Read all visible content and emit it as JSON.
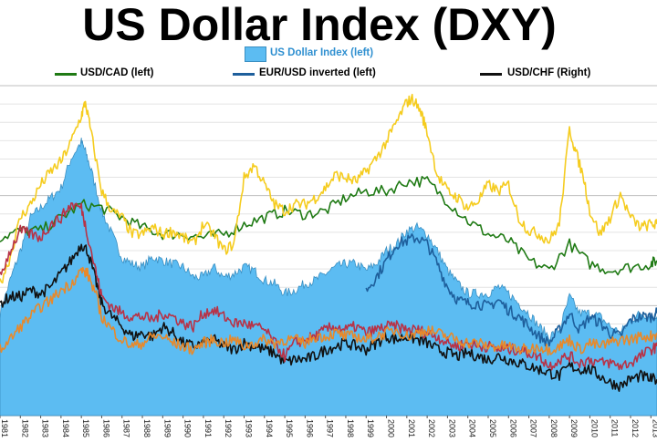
{
  "title": "US Dollar Index (DXY)",
  "legend": {
    "dxy": "US Dollar Index (left)",
    "usdcad": "USD/CAD (left)",
    "eurusd": "EUR/USD inverted (left)",
    "usdchf": "USD/CHF (Right)"
  },
  "colors": {
    "dxy": "#5cbcf2",
    "dxy_border": "#3a8fc2",
    "usdcad": "#1f7a14",
    "eurusd": "#1e5f9c",
    "usdchf": "#111111",
    "gold": "#f5cc1f",
    "orange": "#e8892a",
    "crimson": "#b83246"
  },
  "chart_data": {
    "type": "area",
    "x_ticks": [
      "1981",
      "1982",
      "1983",
      "1984",
      "1985",
      "1986",
      "1987",
      "1988",
      "1989",
      "1990",
      "1991",
      "1992",
      "1993",
      "1994",
      "1995",
      "1996",
      "1997",
      "1998",
      "1999",
      "2000",
      "2001",
      "2002",
      "2003",
      "2004",
      "2005",
      "2006",
      "2007",
      "2008",
      "2009",
      "2010",
      "2011",
      "2012",
      "2013"
    ],
    "x_range": [
      1981,
      2013.3
    ],
    "y_range": [
      0,
      1
    ],
    "grid": true,
    "series": [
      {
        "name": "US Dollar Index (left)",
        "kind": "area",
        "color": "#5cbcf2",
        "x": [
          1981.0,
          1981.5,
          1982.0,
          1982.5,
          1983.0,
          1983.5,
          1984.0,
          1984.5,
          1985.0,
          1985.2,
          1985.5,
          1986.0,
          1986.5,
          1987.0,
          1987.5,
          1988.0,
          1988.5,
          1989.0,
          1989.5,
          1990.0,
          1990.5,
          1991.0,
          1991.5,
          1992.0,
          1992.5,
          1993.0,
          1993.5,
          1994.0,
          1994.5,
          1995.0,
          1995.5,
          1996.0,
          1996.5,
          1997.0,
          1997.5,
          1998.0,
          1998.5,
          1999.0,
          1999.5,
          2000.0,
          2000.5,
          2001.0,
          2001.5,
          2002.0,
          2002.5,
          2003.0,
          2003.5,
          2004.0,
          2004.5,
          2005.0,
          2005.5,
          2006.0,
          2006.5,
          2007.0,
          2007.5,
          2008.0,
          2008.5,
          2009.0,
          2009.5,
          2010.0,
          2010.5,
          2011.0,
          2011.5,
          2012.0,
          2012.5,
          2013.0,
          2013.3
        ],
        "y": [
          0.31,
          0.41,
          0.5,
          0.6,
          0.63,
          0.66,
          0.69,
          0.78,
          0.83,
          0.8,
          0.74,
          0.62,
          0.55,
          0.48,
          0.46,
          0.45,
          0.48,
          0.47,
          0.46,
          0.45,
          0.42,
          0.42,
          0.45,
          0.42,
          0.43,
          0.45,
          0.44,
          0.41,
          0.4,
          0.37,
          0.38,
          0.4,
          0.41,
          0.43,
          0.45,
          0.46,
          0.46,
          0.44,
          0.46,
          0.5,
          0.52,
          0.56,
          0.57,
          0.55,
          0.5,
          0.44,
          0.4,
          0.37,
          0.37,
          0.37,
          0.39,
          0.37,
          0.34,
          0.31,
          0.27,
          0.24,
          0.26,
          0.36,
          0.31,
          0.31,
          0.3,
          0.27,
          0.25,
          0.29,
          0.31,
          0.3,
          0.3
        ]
      },
      {
        "name": "USD/CAD (left)",
        "kind": "line",
        "color": "#1f7a14",
        "x": [
          1981.0,
          1982.0,
          1983.0,
          1984.0,
          1985.0,
          1986.0,
          1987.0,
          1988.0,
          1989.0,
          1990.0,
          1991.0,
          1992.0,
          1993.0,
          1994.0,
          1995.0,
          1996.0,
          1997.0,
          1998.0,
          1999.0,
          2000.0,
          2001.0,
          2002.0,
          2003.0,
          2004.0,
          2005.0,
          2006.0,
          2007.0,
          2008.0,
          2009.0,
          2010.0,
          2011.0,
          2012.0,
          2013.0,
          2013.3
        ],
        "y": [
          0.54,
          0.56,
          0.56,
          0.6,
          0.64,
          0.63,
          0.6,
          0.57,
          0.55,
          0.55,
          0.54,
          0.55,
          0.58,
          0.6,
          0.62,
          0.61,
          0.62,
          0.66,
          0.68,
          0.68,
          0.71,
          0.71,
          0.65,
          0.59,
          0.55,
          0.53,
          0.47,
          0.44,
          0.52,
          0.46,
          0.44,
          0.45,
          0.46,
          0.47
        ]
      },
      {
        "name": "EUR/USD inverted (left)",
        "kind": "line",
        "color": "#1e5f9c",
        "x": [
          1999.0,
          1999.5,
          2000.0,
          2000.5,
          2001.0,
          2001.5,
          2002.0,
          2002.5,
          2003.0,
          2003.5,
          2004.0,
          2004.5,
          2005.0,
          2005.5,
          2006.0,
          2006.5,
          2007.0,
          2007.5,
          2008.0,
          2008.5,
          2009.0,
          2009.5,
          2010.0,
          2010.5,
          2011.0,
          2011.5,
          2012.0,
          2012.5,
          2013.0,
          2013.3
        ],
        "y": [
          0.38,
          0.42,
          0.47,
          0.52,
          0.53,
          0.54,
          0.52,
          0.46,
          0.39,
          0.35,
          0.34,
          0.34,
          0.33,
          0.35,
          0.32,
          0.3,
          0.27,
          0.24,
          0.22,
          0.26,
          0.31,
          0.26,
          0.3,
          0.28,
          0.25,
          0.24,
          0.29,
          0.3,
          0.3,
          0.31
        ]
      },
      {
        "name": "USD/CHF (Right)",
        "kind": "line",
        "color": "#111111",
        "x": [
          1981.0,
          1981.5,
          1982.0,
          1982.5,
          1983.0,
          1983.5,
          1984.0,
          1984.5,
          1985.0,
          1985.3,
          1985.7,
          1986.0,
          1986.5,
          1987.0,
          1987.5,
          1988.0,
          1988.5,
          1989.0,
          1989.5,
          1990.0,
          1990.5,
          1991.0,
          1991.5,
          1992.0,
          1992.5,
          1993.0,
          1993.5,
          1994.0,
          1994.5,
          1995.0,
          1995.5,
          1996.0,
          1996.5,
          1997.0,
          1997.5,
          1998.0,
          1998.5,
          1999.0,
          1999.5,
          2000.0,
          2000.5,
          2001.0,
          2001.5,
          2002.0,
          2002.5,
          2003.0,
          2003.5,
          2004.0,
          2004.5,
          2005.0,
          2005.5,
          2006.0,
          2006.5,
          2007.0,
          2007.5,
          2008.0,
          2008.5,
          2009.0,
          2009.5,
          2010.0,
          2010.5,
          2011.0,
          2011.5,
          2012.0,
          2012.5,
          2013.0,
          2013.3
        ],
        "y": [
          0.34,
          0.36,
          0.36,
          0.38,
          0.37,
          0.39,
          0.43,
          0.47,
          0.52,
          0.5,
          0.41,
          0.34,
          0.3,
          0.27,
          0.24,
          0.25,
          0.24,
          0.27,
          0.25,
          0.22,
          0.21,
          0.22,
          0.23,
          0.21,
          0.2,
          0.22,
          0.21,
          0.2,
          0.19,
          0.16,
          0.17,
          0.17,
          0.18,
          0.2,
          0.21,
          0.22,
          0.21,
          0.2,
          0.22,
          0.24,
          0.23,
          0.24,
          0.23,
          0.22,
          0.2,
          0.19,
          0.18,
          0.19,
          0.18,
          0.17,
          0.18,
          0.17,
          0.16,
          0.15,
          0.14,
          0.13,
          0.12,
          0.15,
          0.14,
          0.14,
          0.12,
          0.1,
          0.09,
          0.11,
          0.12,
          0.11,
          0.11
        ]
      },
      {
        "kind": "line",
        "color": "#f5cc1f",
        "x": [
          1981.0,
          1981.5,
          1982.0,
          1982.5,
          1983.0,
          1983.5,
          1984.0,
          1984.5,
          1985.0,
          1985.2,
          1985.5,
          1986.0,
          1986.5,
          1987.0,
          1987.5,
          1988.0,
          1988.5,
          1989.0,
          1989.5,
          1990.0,
          1990.5,
          1991.0,
          1991.5,
          1992.0,
          1992.5,
          1993.0,
          1993.5,
          1994.0,
          1994.5,
          1995.0,
          1995.5,
          1996.0,
          1996.5,
          1997.0,
          1997.5,
          1998.0,
          1998.5,
          1999.0,
          1999.5,
          2000.0,
          2000.5,
          2001.0,
          2001.3,
          2001.7,
          2002.0,
          2002.5,
          2003.0,
          2003.5,
          2004.0,
          2004.5,
          2005.0,
          2005.5,
          2006.0,
          2006.5,
          2007.0,
          2007.5,
          2008.0,
          2008.5,
          2009.0,
          2009.3,
          2009.7,
          2010.0,
          2010.5,
          2011.0,
          2011.5,
          2012.0,
          2012.5,
          2013.0,
          2013.3
        ],
        "y": [
          0.4,
          0.48,
          0.6,
          0.64,
          0.7,
          0.74,
          0.77,
          0.83,
          0.91,
          0.95,
          0.85,
          0.68,
          0.62,
          0.6,
          0.55,
          0.55,
          0.57,
          0.55,
          0.56,
          0.54,
          0.52,
          0.58,
          0.55,
          0.5,
          0.52,
          0.72,
          0.76,
          0.7,
          0.64,
          0.62,
          0.64,
          0.64,
          0.66,
          0.69,
          0.73,
          0.72,
          0.71,
          0.74,
          0.78,
          0.83,
          0.89,
          0.95,
          0.96,
          0.92,
          0.86,
          0.73,
          0.68,
          0.66,
          0.63,
          0.65,
          0.7,
          0.68,
          0.7,
          0.6,
          0.56,
          0.55,
          0.53,
          0.58,
          0.87,
          0.8,
          0.72,
          0.62,
          0.55,
          0.6,
          0.67,
          0.6,
          0.57,
          0.58,
          0.58
        ]
      },
      {
        "kind": "line",
        "color": "#b83246",
        "x": [
          1981.0,
          1981.5,
          1982.0,
          1982.5,
          1983.0,
          1983.5,
          1984.0,
          1984.5,
          1985.0,
          1985.3,
          1985.7,
          1986.0,
          1986.5,
          1987.0,
          1987.5,
          1988.0,
          1988.5,
          1989.0,
          1989.5,
          1990.0,
          1990.5,
          1991.0,
          1991.5,
          1992.0,
          1992.5,
          1993.0,
          1993.5,
          1994.0,
          1994.5,
          1995.0,
          1995.5,
          1996.0,
          1996.5,
          1997.0,
          1997.5,
          1998.0,
          1998.5,
          1999.0,
          1999.5,
          2000.0,
          2000.5,
          2001.0,
          2001.5,
          2002.0,
          2002.5,
          2003.0,
          2003.5,
          2004.0,
          2004.5,
          2005.0,
          2005.5,
          2006.0,
          2006.5,
          2007.0,
          2007.5,
          2008.0,
          2008.5,
          2009.0,
          2009.5,
          2010.0,
          2010.5,
          2011.0,
          2011.5,
          2012.0,
          2012.5,
          2013.0,
          2013.3
        ],
        "y": [
          0.42,
          0.5,
          0.56,
          0.55,
          0.54,
          0.58,
          0.6,
          0.64,
          0.63,
          0.55,
          0.44,
          0.36,
          0.33,
          0.31,
          0.3,
          0.3,
          0.29,
          0.31,
          0.3,
          0.28,
          0.27,
          0.31,
          0.32,
          0.3,
          0.28,
          0.28,
          0.27,
          0.26,
          0.22,
          0.18,
          0.22,
          0.23,
          0.24,
          0.26,
          0.27,
          0.26,
          0.27,
          0.25,
          0.26,
          0.27,
          0.27,
          0.26,
          0.26,
          0.25,
          0.24,
          0.22,
          0.21,
          0.22,
          0.21,
          0.21,
          0.2,
          0.2,
          0.2,
          0.19,
          0.18,
          0.15,
          0.17,
          0.18,
          0.16,
          0.17,
          0.16,
          0.16,
          0.15,
          0.16,
          0.18,
          0.2,
          0.21
        ]
      },
      {
        "kind": "line",
        "color": "#e8892a",
        "x": [
          1981.0,
          1981.5,
          1982.0,
          1982.5,
          1983.0,
          1983.5,
          1984.0,
          1984.5,
          1985.0,
          1985.3,
          1985.7,
          1986.0,
          1986.5,
          1987.0,
          1987.5,
          1988.0,
          1988.5,
          1989.0,
          1989.5,
          1990.0,
          1990.5,
          1991.0,
          1991.5,
          1992.0,
          1992.5,
          1993.0,
          1993.5,
          1994.0,
          1994.5,
          1995.0,
          1995.5,
          1996.0,
          1996.5,
          1997.0,
          1997.5,
          1998.0,
          1998.5,
          1999.0,
          1999.5,
          2000.0,
          2000.5,
          2001.0,
          2001.5,
          2002.0,
          2002.5,
          2003.0,
          2003.5,
          2004.0,
          2004.5,
          2005.0,
          2005.5,
          2006.0,
          2006.5,
          2007.0,
          2007.5,
          2008.0,
          2008.5,
          2009.0,
          2009.5,
          2010.0,
          2010.5,
          2011.0,
          2011.5,
          2012.0,
          2012.5,
          2013.0,
          2013.3
        ],
        "y": [
          0.2,
          0.23,
          0.27,
          0.3,
          0.33,
          0.35,
          0.38,
          0.4,
          0.44,
          0.43,
          0.37,
          0.3,
          0.26,
          0.23,
          0.21,
          0.22,
          0.24,
          0.24,
          0.22,
          0.21,
          0.2,
          0.22,
          0.23,
          0.22,
          0.23,
          0.21,
          0.22,
          0.23,
          0.22,
          0.23,
          0.23,
          0.22,
          0.24,
          0.24,
          0.25,
          0.24,
          0.24,
          0.23,
          0.24,
          0.25,
          0.26,
          0.24,
          0.25,
          0.26,
          0.25,
          0.24,
          0.23,
          0.22,
          0.22,
          0.21,
          0.21,
          0.21,
          0.2,
          0.2,
          0.21,
          0.2,
          0.21,
          0.23,
          0.2,
          0.22,
          0.21,
          0.22,
          0.23,
          0.23,
          0.24,
          0.24,
          0.25
        ]
      }
    ]
  }
}
